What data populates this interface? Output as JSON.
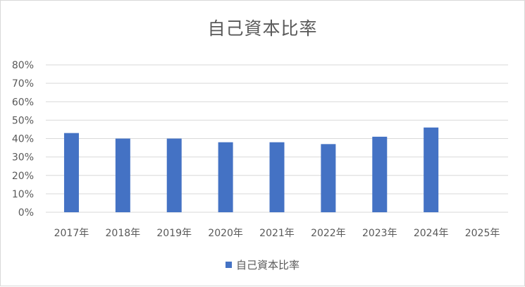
{
  "chart_data": {
    "type": "bar",
    "title": "自己資本比率",
    "categories": [
      "2017年",
      "2018年",
      "2019年",
      "2020年",
      "2021年",
      "2022年",
      "2023年",
      "2024年",
      "2025年"
    ],
    "series": [
      {
        "name": "自己資本比率",
        "values": [
          43,
          40,
          40,
          38,
          38,
          37,
          41,
          46,
          null
        ]
      }
    ],
    "ylim": [
      0,
      80
    ],
    "yticks": [
      "0%",
      "10%",
      "20%",
      "30%",
      "40%",
      "50%",
      "60%",
      "70%",
      "80%"
    ],
    "grid": true,
    "legend_position": "bottom",
    "bar_color": "#4472c4"
  }
}
